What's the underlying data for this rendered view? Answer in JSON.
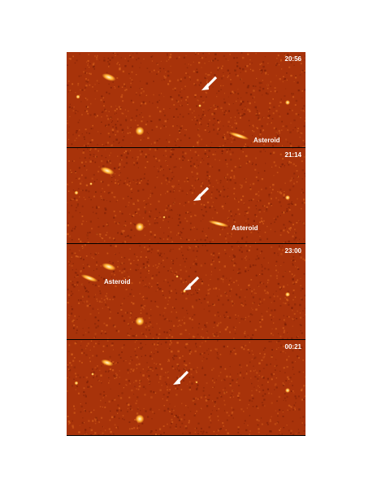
{
  "colors": {
    "background": "#a8330a",
    "noise_dark": "#7a1e05",
    "noise_light": "#d8621c",
    "star_core": "#fff8d8",
    "star_glow": "#ffb030",
    "arrow": "#ffffff"
  },
  "frames": [
    {
      "time": "20:56",
      "asteroid_label": "Asteroid"
    },
    {
      "time": "21:14",
      "asteroid_label": "Asteroid"
    },
    {
      "time": "23:00",
      "asteroid_label": "Asteroid"
    },
    {
      "time": "00:21",
      "asteroid_label": ""
    }
  ]
}
